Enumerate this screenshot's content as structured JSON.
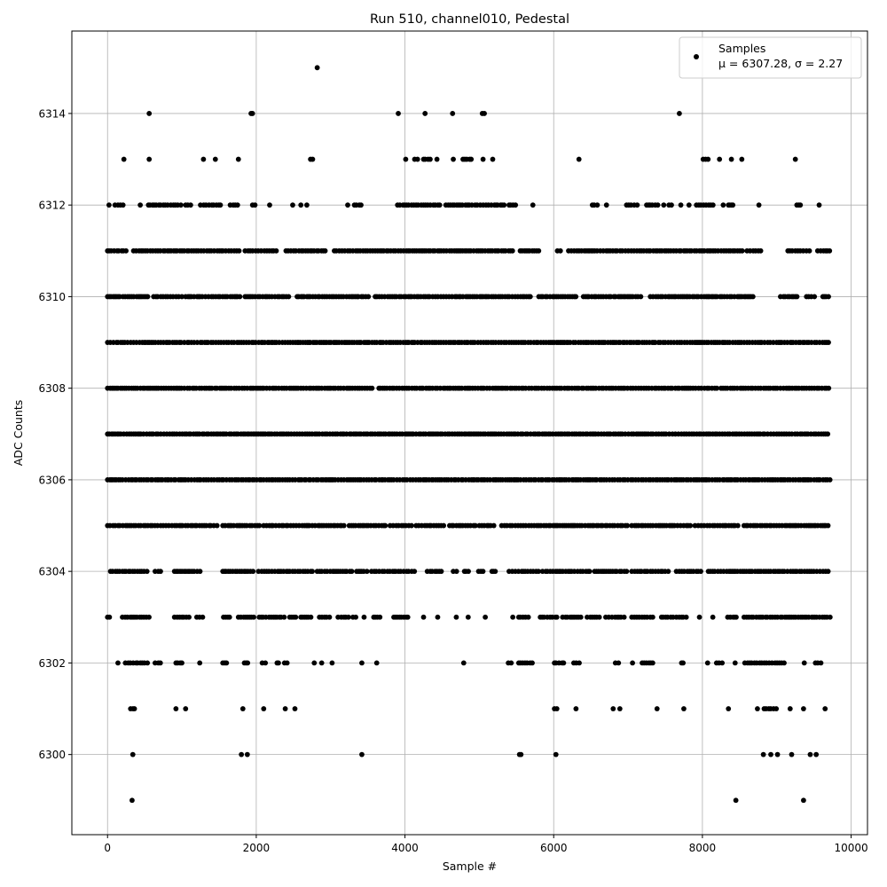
{
  "chart_data": {
    "type": "scatter",
    "title": "Run 510, channel010, Pedestal",
    "xlabel": "Sample #",
    "ylabel": "ADC Counts",
    "xlim": [
      -480,
      10220
    ],
    "ylim": [
      6298.25,
      6315.8
    ],
    "x_ticks": [
      0,
      2000,
      4000,
      6000,
      8000,
      10000
    ],
    "y_ticks": [
      6300,
      6302,
      6304,
      6306,
      6308,
      6310,
      6312,
      6314
    ],
    "grid": true,
    "marker_color": "#000000",
    "legend": {
      "placement": "top-right",
      "series_name": "Samples",
      "stats_text": "μ = 6307.28, σ = 2.27"
    },
    "series": [
      {
        "name": "Samples",
        "band_ranges": [
          {
            "y": 6299,
            "x": [
              [
                330,
                330
              ],
              [
                8450,
                8450
              ],
              [
                9360,
                9360
              ]
            ]
          },
          {
            "y": 6300,
            "x": [
              [
                340,
                340
              ],
              [
                1800,
                1800
              ],
              [
                1880,
                1880
              ],
              [
                3420,
                3420
              ],
              [
                5540,
                5560
              ],
              [
                6030,
                6030
              ],
              [
                8820,
                8820
              ],
              [
                8920,
                8920
              ],
              [
                9010,
                9010
              ],
              [
                9200,
                9200
              ],
              [
                9450,
                9450
              ],
              [
                9530,
                9530
              ]
            ]
          },
          {
            "y": 6301,
            "x": [
              [
                310,
                380
              ],
              [
                920,
                920
              ],
              [
                1050,
                1060
              ],
              [
                1820,
                1820
              ],
              [
                2100,
                2100
              ],
              [
                2390,
                2390
              ],
              [
                2520,
                2560
              ],
              [
                6010,
                6060
              ],
              [
                6300,
                6300
              ],
              [
                6800,
                6800
              ],
              [
                6890,
                6890
              ],
              [
                7390,
                7390
              ],
              [
                7750,
                7750
              ],
              [
                8350,
                8350
              ],
              [
                8740,
                8740
              ],
              [
                8830,
                9010
              ],
              [
                9180,
                9180
              ],
              [
                9360,
                9360
              ],
              [
                9650,
                9650
              ]
            ]
          },
          {
            "y": 6302,
            "x": [
              [
                140,
                140
              ],
              [
                240,
                540
              ],
              [
                640,
                740
              ],
              [
                920,
                1020
              ],
              [
                1240,
                1240
              ],
              [
                1550,
                1630
              ],
              [
                1840,
                1920
              ],
              [
                2080,
                2130
              ],
              [
                2280,
                2300
              ],
              [
                2380,
                2420
              ],
              [
                2780,
                2780
              ],
              [
                2880,
                2880
              ],
              [
                3020,
                3020
              ],
              [
                3420,
                3420
              ],
              [
                3620,
                3620
              ],
              [
                4790,
                4790
              ],
              [
                5390,
                5440
              ],
              [
                5530,
                5720
              ],
              [
                6010,
                6140
              ],
              [
                6270,
                6360
              ],
              [
                6830,
                6890
              ],
              [
                7060,
                7060
              ],
              [
                7190,
                7370
              ],
              [
                7720,
                7760
              ],
              [
                8070,
                8070
              ],
              [
                8190,
                8280
              ],
              [
                8440,
                8440
              ],
              [
                8570,
                9120
              ],
              [
                9370,
                9370
              ],
              [
                9520,
                9600
              ]
            ]
          },
          {
            "y": 6303,
            "x": [
              [
                0,
                60
              ],
              [
                200,
                580
              ],
              [
                900,
                1120
              ],
              [
                1200,
                1300
              ],
              [
                1560,
                1680
              ],
              [
                1760,
                1980
              ],
              [
                2040,
                2380
              ],
              [
                2450,
                2550
              ],
              [
                2600,
                2750
              ],
              [
                2850,
                3000
              ],
              [
                3100,
                3250
              ],
              [
                3300,
                3350
              ],
              [
                3450,
                3450
              ],
              [
                3580,
                3700
              ],
              [
                3850,
                4050
              ],
              [
                4250,
                4250
              ],
              [
                4440,
                4440
              ],
              [
                4690,
                4690
              ],
              [
                4850,
                4850
              ],
              [
                5080,
                5080
              ],
              [
                5450,
                5450
              ],
              [
                5530,
                5660
              ],
              [
                5820,
                6080
              ],
              [
                6120,
                6380
              ],
              [
                6450,
                6630
              ],
              [
                6700,
                6950
              ],
              [
                7050,
                7350
              ],
              [
                7450,
                7800
              ],
              [
                7960,
                7960
              ],
              [
                8140,
                8140
              ],
              [
                8340,
                8460
              ],
              [
                8560,
                9720
              ]
            ]
          },
          {
            "y": 6304,
            "x": [
              [
                40,
                540
              ],
              [
                640,
                740
              ],
              [
                900,
                1250
              ],
              [
                1550,
                1980
              ],
              [
                2030,
                2770
              ],
              [
                2820,
                3300
              ],
              [
                3350,
                3500
              ],
              [
                3550,
                4150
              ],
              [
                4300,
                4500
              ],
              [
                4650,
                4700
              ],
              [
                4800,
                4860
              ],
              [
                4990,
                5060
              ],
              [
                5170,
                5240
              ],
              [
                5400,
                5800
              ],
              [
                5850,
                6500
              ],
              [
                6550,
                7000
              ],
              [
                7050,
                7550
              ],
              [
                7650,
                8000
              ],
              [
                8080,
                9720
              ]
            ]
          },
          {
            "y": 6305,
            "x": [
              [
                0,
                1500
              ],
              [
                1550,
                2050
              ],
              [
                2100,
                3200
              ],
              [
                3250,
                3750
              ],
              [
                3800,
                4100
              ],
              [
                4150,
                4550
              ],
              [
                4600,
                4950
              ],
              [
                5000,
                5200
              ],
              [
                5300,
                7000
              ],
              [
                7050,
                7850
              ],
              [
                7900,
                8500
              ],
              [
                8560,
                9720
              ]
            ]
          },
          {
            "y": 6306,
            "x": [
              [
                0,
                9720
              ]
            ]
          },
          {
            "y": 6307,
            "x": [
              [
                0,
                9720
              ]
            ]
          },
          {
            "y": 6308,
            "x": [
              [
                0,
                3600
              ],
              [
                3650,
                8200
              ],
              [
                8250,
                9720
              ]
            ]
          },
          {
            "y": 6309,
            "x": [
              [
                0,
                9720
              ]
            ]
          },
          {
            "y": 6310,
            "x": [
              [
                0,
                560
              ],
              [
                620,
                1000
              ],
              [
                1050,
                1800
              ],
              [
                1850,
                2450
              ],
              [
                2550,
                3550
              ],
              [
                3600,
                5700
              ],
              [
                5800,
                6300
              ],
              [
                6400,
                7200
              ],
              [
                7300,
                8700
              ],
              [
                9050,
                9300
              ],
              [
                9400,
                9520
              ],
              [
                9620,
                9720
              ]
            ]
          },
          {
            "y": 6311,
            "x": [
              [
                0,
                250
              ],
              [
                350,
                1800
              ],
              [
                1850,
                2300
              ],
              [
                2400,
                2950
              ],
              [
                3050,
                5450
              ],
              [
                5550,
                5800
              ],
              [
                6050,
                6100
              ],
              [
                6200,
                8550
              ],
              [
                8600,
                8800
              ],
              [
                9150,
                9450
              ],
              [
                9550,
                9720
              ]
            ]
          },
          {
            "y": 6312,
            "x": [
              [
                20,
                20
              ],
              [
                100,
                220
              ],
              [
                440,
                440
              ],
              [
                550,
                1000
              ],
              [
                1050,
                1150
              ],
              [
                1250,
                1550
              ],
              [
                1650,
                1750
              ],
              [
                1950,
                2000
              ],
              [
                2180,
                2180
              ],
              [
                2490,
                2490
              ],
              [
                2600,
                2600
              ],
              [
                2680,
                2680
              ],
              [
                3230,
                3230
              ],
              [
                3320,
                3450
              ],
              [
                3900,
                4500
              ],
              [
                4550,
                5350
              ],
              [
                5400,
                5500
              ],
              [
                5720,
                5720
              ],
              [
                6520,
                6600
              ],
              [
                6710,
                6710
              ],
              [
                6980,
                7150
              ],
              [
                7250,
                7400
              ],
              [
                7480,
                7480
              ],
              [
                7550,
                7600
              ],
              [
                7710,
                7710
              ],
              [
                7820,
                7820
              ],
              [
                7920,
                8150
              ],
              [
                8280,
                8280
              ],
              [
                8350,
                8420
              ],
              [
                8760,
                8760
              ],
              [
                9270,
                9320
              ],
              [
                9570,
                9570
              ]
            ]
          },
          {
            "y": 6313,
            "x": [
              [
                220,
                220
              ],
              [
                560,
                560
              ],
              [
                1290,
                1290
              ],
              [
                1450,
                1450
              ],
              [
                1760,
                1760
              ],
              [
                2730,
                2770
              ],
              [
                4010,
                4010
              ],
              [
                4130,
                4200
              ],
              [
                4250,
                4350
              ],
              [
                4430,
                4430
              ],
              [
                4650,
                4650
              ],
              [
                4780,
                4850
              ],
              [
                4870,
                4930
              ],
              [
                5050,
                5050
              ],
              [
                5180,
                5180
              ],
              [
                6340,
                6340
              ],
              [
                8010,
                8080
              ],
              [
                8230,
                8230
              ],
              [
                8390,
                8390
              ],
              [
                8530,
                8530
              ],
              [
                9250,
                9250
              ]
            ]
          },
          {
            "y": 6314,
            "x": [
              [
                560,
                560
              ],
              [
                1930,
                1970
              ],
              [
                3910,
                3910
              ],
              [
                4270,
                4270
              ],
              [
                4640,
                4640
              ],
              [
                5040,
                5100
              ],
              [
                7690,
                7690
              ]
            ]
          },
          {
            "y": 6315,
            "x": [
              [
                2820,
                2820
              ]
            ]
          }
        ]
      }
    ]
  }
}
